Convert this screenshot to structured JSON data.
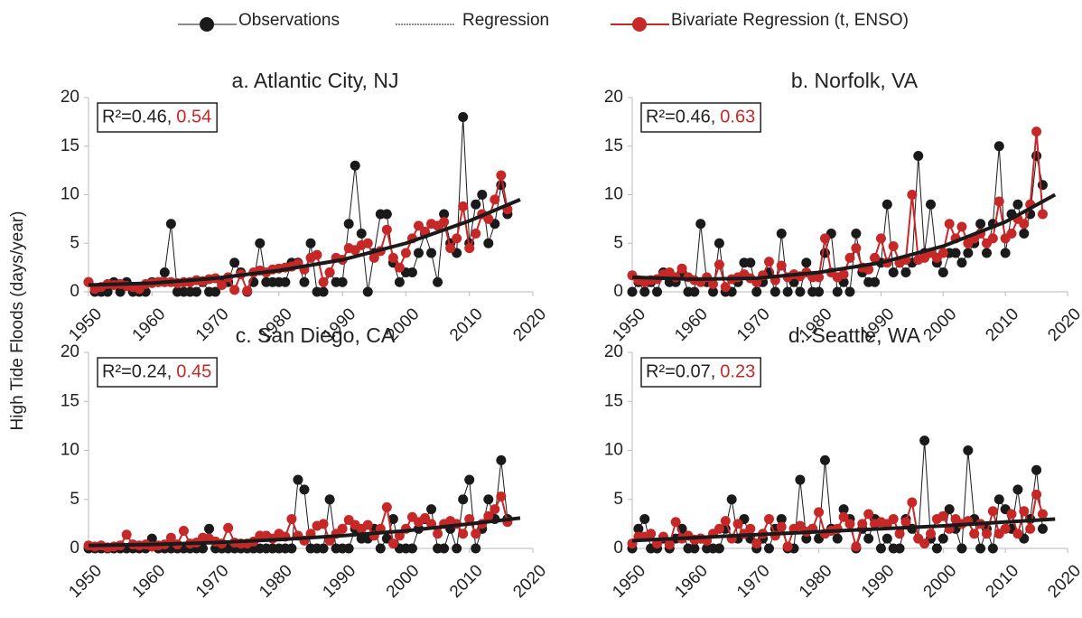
{
  "chart_data": [
    {
      "type": "line",
      "title": "a. Atlantic City, NJ",
      "ylabel": "High Tide Floods (days/year)",
      "r2_text": "R²=0.46,",
      "r2_biv_text": "0.54",
      "xlim": [
        1950,
        2020
      ],
      "xticks": [
        1950,
        1960,
        1970,
        1980,
        1990,
        2000,
        2010,
        2020
      ],
      "ylim": [
        0,
        20
      ],
      "yticks": [
        0,
        5,
        10,
        15,
        20
      ],
      "x": [
        1950,
        1951,
        1952,
        1953,
        1954,
        1955,
        1956,
        1957,
        1958,
        1959,
        1960,
        1961,
        1962,
        1963,
        1964,
        1965,
        1966,
        1967,
        1968,
        1969,
        1970,
        1971,
        1972,
        1973,
        1974,
        1975,
        1976,
        1977,
        1978,
        1979,
        1980,
        1981,
        1982,
        1983,
        1984,
        1985,
        1986,
        1987,
        1988,
        1989,
        1990,
        1991,
        1992,
        1993,
        1994,
        1995,
        1996,
        1997,
        1998,
        1999,
        2000,
        2001,
        2002,
        2003,
        2004,
        2005,
        2006,
        2007,
        2008,
        2009,
        2010,
        2011,
        2012,
        2013,
        2014,
        2015,
        2016
      ],
      "series": [
        {
          "name": "Observations",
          "color": "#1a1a1a",
          "values": [
            1,
            0,
            0,
            0,
            1,
            0,
            1,
            0,
            0,
            0,
            1,
            1,
            2,
            7,
            0,
            0,
            0,
            0,
            1,
            0,
            0,
            1,
            1,
            3,
            2,
            0,
            1,
            5,
            1,
            1,
            1,
            1,
            3,
            3,
            1,
            5,
            0,
            0,
            2,
            1,
            1,
            7,
            13,
            6,
            0,
            4,
            8,
            8,
            3,
            1,
            2,
            2,
            4,
            6,
            4,
            1,
            8,
            5,
            4,
            18,
            5,
            9,
            10,
            5,
            7,
            11,
            8
          ]
        },
        {
          "name": "Regression",
          "color": "#1a1a1a",
          "x": [
            1950,
            1960,
            1970,
            1980,
            1990,
            2000,
            2010,
            2018
          ],
          "values": [
            0.7,
            0.9,
            1.4,
            2.2,
            3.3,
            5,
            7.3,
            9.5
          ]
        },
        {
          "name": "Bivariate Regression (t, ENSO)",
          "color": "#c62828",
          "values": [
            1,
            0.3,
            0.5,
            0.8,
            0.7,
            0.8,
            0.6,
            0.5,
            0.3,
            0.8,
            0.9,
            1,
            1,
            1,
            0.9,
            1,
            1,
            1.2,
            1.1,
            1.3,
            1.4,
            0.7,
            1.5,
            0.2,
            1.8,
            0.1,
            2,
            2.2,
            2,
            2.3,
            2.4,
            2.5,
            2.6,
            2.9,
            2.3,
            3.5,
            3.8,
            1,
            2,
            3.5,
            3.3,
            4.5,
            4.3,
            4.8,
            5,
            3.5,
            4.2,
            6.4,
            3.5,
            2.5,
            4,
            5.5,
            6.8,
            6.2,
            7,
            6.8,
            7.2,
            4.5,
            5.5,
            8.8,
            4.5,
            6,
            8,
            7.5,
            9.5,
            12,
            8.5
          ]
        }
      ]
    },
    {
      "type": "line",
      "title": "b. Norfolk, VA",
      "r2_text": "R²=0.46,",
      "r2_biv_text": "0.63",
      "xlim": [
        1950,
        2020
      ],
      "xticks": [
        1950,
        1960,
        1970,
        1980,
        1990,
        2000,
        2010,
        2020
      ],
      "ylim": [
        0,
        20
      ],
      "yticks": [
        0,
        5,
        10,
        15,
        20
      ],
      "x": [
        1950,
        1951,
        1952,
        1953,
        1954,
        1955,
        1956,
        1957,
        1958,
        1959,
        1960,
        1961,
        1962,
        1963,
        1964,
        1965,
        1966,
        1967,
        1968,
        1969,
        1970,
        1971,
        1972,
        1973,
        1974,
        1975,
        1976,
        1977,
        1978,
        1979,
        1980,
        1981,
        1982,
        1983,
        1984,
        1985,
        1986,
        1987,
        1988,
        1989,
        1990,
        1991,
        1992,
        1993,
        1994,
        1995,
        1996,
        1997,
        1998,
        1999,
        2000,
        2001,
        2002,
        2003,
        2004,
        2005,
        2006,
        2007,
        2008,
        2009,
        2010,
        2011,
        2012,
        2013,
        2014,
        2015,
        2016
      ],
      "series": [
        {
          "name": "Observations",
          "color": "#1a1a1a",
          "values": [
            0,
            1,
            0,
            1,
            0,
            2,
            1,
            1,
            2,
            0,
            0,
            7,
            1,
            0,
            5,
            0,
            0,
            1,
            3,
            3,
            0,
            1,
            2,
            0,
            6,
            0,
            1,
            0,
            3,
            0,
            0,
            4,
            6,
            0,
            1,
            0,
            6,
            2,
            1,
            1,
            3,
            9,
            2,
            3,
            2,
            3,
            14,
            4,
            9,
            3,
            2,
            4,
            4,
            3,
            4,
            5,
            7,
            4,
            7,
            15,
            4,
            8,
            9,
            6,
            8,
            14,
            11
          ]
        },
        {
          "name": "Regression",
          "color": "#1a1a1a",
          "x": [
            1950,
            1960,
            1970,
            1980,
            1990,
            2000,
            2010,
            2018
          ],
          "values": [
            1.5,
            1.3,
            1.4,
            2,
            3,
            4.7,
            7.2,
            10
          ]
        },
        {
          "name": "Bivariate Regression (t, ENSO)",
          "color": "#c62828",
          "values": [
            1.7,
            1.2,
            1,
            1.2,
            1.3,
            1.8,
            2,
            1.5,
            2.4,
            1.5,
            1.2,
            1,
            1.5,
            0.8,
            2.8,
            0.5,
            1.3,
            1.5,
            1.8,
            1.4,
            1,
            1.7,
            3.1,
            1.2,
            2.7,
            1.5,
            1.8,
            1.6,
            2,
            1.5,
            1.5,
            5.5,
            2,
            1.5,
            1.8,
            3.5,
            4.5,
            2.5,
            2.3,
            3.5,
            5.5,
            3,
            4.7,
            3,
            3.3,
            10,
            3.3,
            3.5,
            4,
            3.5,
            4,
            7,
            5.5,
            6.7,
            5,
            5.5,
            6,
            5,
            5.5,
            9.3,
            5.5,
            6,
            7.5,
            7,
            9,
            16.5,
            8
          ]
        }
      ]
    },
    {
      "type": "line",
      "title": "c. San Diego, CA",
      "r2_text": "R²=0.24,",
      "r2_biv_text": "0.45",
      "xlim": [
        1950,
        2020
      ],
      "xticks": [
        1950,
        1960,
        1970,
        1980,
        1990,
        2000,
        2010,
        2020
      ],
      "ylim": [
        0,
        20
      ],
      "yticks": [
        0,
        5,
        10,
        15,
        20
      ],
      "x": [
        1950,
        1951,
        1952,
        1953,
        1954,
        1955,
        1956,
        1957,
        1958,
        1959,
        1960,
        1961,
        1962,
        1963,
        1964,
        1965,
        1966,
        1967,
        1968,
        1969,
        1970,
        1971,
        1972,
        1973,
        1974,
        1975,
        1976,
        1977,
        1978,
        1979,
        1980,
        1981,
        1982,
        1983,
        1984,
        1985,
        1986,
        1987,
        1988,
        1989,
        1990,
        1991,
        1992,
        1993,
        1994,
        1995,
        1996,
        1997,
        1998,
        1999,
        2000,
        2001,
        2002,
        2003,
        2004,
        2005,
        2006,
        2007,
        2008,
        2009,
        2010,
        2011,
        2012,
        2013,
        2014,
        2015,
        2016
      ],
      "series": [
        {
          "name": "Observations",
          "color": "#1a1a1a",
          "values": [
            0,
            0,
            0,
            0,
            0,
            0,
            0,
            0,
            0,
            0,
            1,
            0,
            0,
            0,
            0,
            0,
            0,
            0,
            0,
            2,
            0,
            0,
            0,
            0,
            0,
            0,
            0,
            0,
            0,
            0,
            0,
            0,
            0,
            7,
            6,
            0,
            0,
            0,
            5,
            0,
            0,
            0,
            2,
            1,
            1,
            2,
            0,
            1,
            3,
            0,
            0,
            0,
            2,
            3,
            4,
            0,
            0,
            2,
            0,
            5,
            7,
            0,
            2,
            5,
            3,
            9,
            3
          ]
        },
        {
          "name": "Regression",
          "color": "#1a1a1a",
          "x": [
            1950,
            1960,
            1970,
            1980,
            1990,
            2000,
            2010,
            2018
          ],
          "values": [
            0.3,
            0.4,
            0.6,
            0.9,
            1.3,
            1.8,
            2.5,
            3.1
          ]
        },
        {
          "name": "Bivariate Regression (t, ENSO)",
          "color": "#c62828",
          "values": [
            0.3,
            0.2,
            0.3,
            0.1,
            0.2,
            0.3,
            1.4,
            0.4,
            0.3,
            0.4,
            0.2,
            0.3,
            0.4,
            1.1,
            0.4,
            1.8,
            0.5,
            0.6,
            1.1,
            1,
            0.7,
            0.5,
            2.1,
            0.6,
            0.5,
            0.5,
            0.7,
            1.3,
            1.3,
            1,
            1.5,
            1.2,
            3,
            1.3,
            0.8,
            1.5,
            2.3,
            2.5,
            0.8,
            1.5,
            2,
            2.9,
            2.4,
            2,
            2.4,
            1.3,
            2,
            4.2,
            0.5,
            1.3,
            2,
            3.2,
            2.7,
            3.1,
            2.5,
            1.5,
            2.5,
            2.8,
            2.5,
            1.5,
            3,
            1.5,
            2.5,
            3.3,
            4,
            5.3,
            2.7
          ]
        }
      ]
    },
    {
      "type": "line",
      "title": "d. Seattle, WA",
      "r2_text": "R²=0.07,",
      "r2_biv_text": "0.23",
      "xlim": [
        1950,
        2020
      ],
      "xticks": [
        1950,
        1960,
        1970,
        1980,
        1990,
        2000,
        2010,
        2020
      ],
      "ylim": [
        0,
        20
      ],
      "yticks": [
        0,
        5,
        10,
        15,
        20
      ],
      "x": [
        1950,
        1951,
        1952,
        1953,
        1954,
        1955,
        1956,
        1957,
        1958,
        1959,
        1960,
        1961,
        1962,
        1963,
        1964,
        1965,
        1966,
        1967,
        1968,
        1969,
        1970,
        1971,
        1972,
        1973,
        1974,
        1975,
        1976,
        1977,
        1978,
        1979,
        1980,
        1981,
        1982,
        1983,
        1984,
        1985,
        1986,
        1987,
        1988,
        1989,
        1990,
        1991,
        1992,
        1993,
        1994,
        1995,
        1996,
        1997,
        1998,
        1999,
        2000,
        2001,
        2002,
        2003,
        2004,
        2005,
        2006,
        2007,
        2008,
        2009,
        2010,
        2011,
        2012,
        2013,
        2014,
        2015,
        2016
      ],
      "series": [
        {
          "name": "Observations",
          "color": "#1a1a1a",
          "values": [
            0,
            2,
            3,
            0,
            0,
            1,
            0,
            1,
            2,
            0,
            0,
            1,
            0,
            0,
            0,
            2,
            5,
            1,
            3,
            1,
            0,
            1,
            0,
            2,
            3,
            0,
            0,
            7,
            1,
            2,
            1,
            9,
            2,
            1,
            4,
            3,
            0,
            2,
            1,
            3,
            0,
            1,
            0,
            0,
            3,
            2,
            1,
            11,
            1,
            0,
            1,
            4,
            2,
            0,
            10,
            3,
            0,
            2,
            0,
            5,
            4,
            2,
            6,
            1,
            3,
            8,
            2
          ]
        },
        {
          "name": "Regression",
          "color": "#1a1a1a",
          "x": [
            1950,
            1960,
            1970,
            1980,
            1990,
            2000,
            2010,
            2018
          ],
          "values": [
            0.8,
            1.1,
            1.4,
            1.7,
            2,
            2.3,
            2.7,
            3
          ]
        },
        {
          "name": "Bivariate Regression (t, ENSO)",
          "color": "#c62828",
          "values": [
            0.5,
            1.2,
            1.2,
            1.5,
            0.5,
            1.2,
            0.4,
            2.7,
            1,
            1.3,
            0.9,
            1,
            0.8,
            1.5,
            2,
            2.8,
            1,
            2.5,
            1.5,
            2,
            0.5,
            1.5,
            3,
            1.3,
            2.2,
            0.2,
            2,
            2.3,
            1.7,
            2,
            3.7,
            1.5,
            1.8,
            2,
            3.2,
            2.5,
            0.2,
            2.5,
            3.5,
            2.5,
            2.7,
            2.5,
            3,
            1.5,
            2.7,
            4.7,
            1,
            0.5,
            1.5,
            3,
            3.3,
            2,
            3,
            2.5,
            2.8,
            1.5,
            2.5,
            1.5,
            3.8,
            1.5,
            2,
            3.5,
            1.5,
            3.8,
            2,
            5.5,
            3.5
          ]
        }
      ]
    }
  ]
}
